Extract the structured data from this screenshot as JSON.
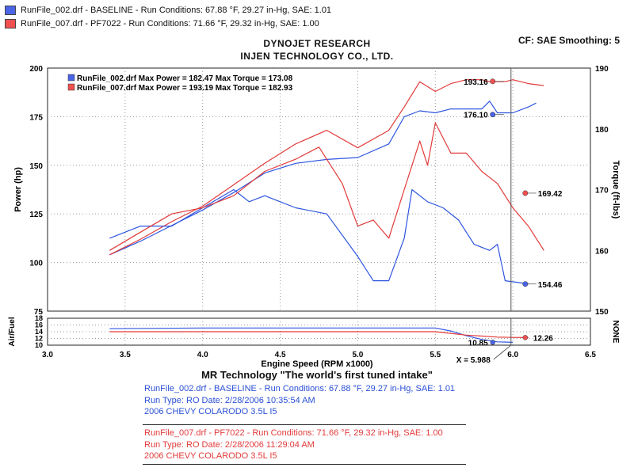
{
  "legend": [
    {
      "text": "RunFile_002.drf - BASELINE  -  Run Conditions: 67.88 °F, 29.27 in-Hg, SAE: 1.01",
      "color": "#4a64e6"
    },
    {
      "text": "RunFile_007.drf - PF7022  -  Run Conditions: 71.66 °F, 29.32 in-Hg, SAE: 1.00",
      "color": "#f05050"
    }
  ],
  "header": {
    "line1": "DYNOJET RESEARCH",
    "line2": "INJEN TECHNOLOGY CO., LTD.",
    "cf_smoothing": "CF: SAE  Smoothing: 5"
  },
  "chart_data": {
    "type": "line",
    "title": "",
    "xlabel": "Engine Speed (RPM x1000)",
    "ylabel_left": "Power (hp)",
    "ylabel_right": "Torque (ft-lbs)",
    "xlim": [
      3.0,
      6.5
    ],
    "xticks": [
      "3.0",
      "3.5",
      "4.0",
      "4.5",
      "5.0",
      "5.5",
      "6.0",
      "6.5"
    ],
    "ylim_power": [
      75,
      200
    ],
    "yticks_power": [
      "75",
      "100",
      "125",
      "150",
      "175",
      "200"
    ],
    "ylim_torque": [
      150,
      190
    ],
    "yticks_torque": [
      "150",
      "160",
      "170",
      "180",
      "190"
    ],
    "grid": true,
    "inplot_legend": [
      {
        "text": "RunFile_002.drf Max Power = 182.47     Max Torque = 173.08",
        "color": "#4a64e6"
      },
      {
        "text": "RunFile_007.drf Max Power = 193.19     Max Torque = 182.93",
        "color": "#f05050"
      }
    ],
    "cursor_x": 5.988,
    "cursor_label": "X = 5.988",
    "series": [
      {
        "name": "RunFile_002.drf",
        "measure": "Power (hp)",
        "color": "#2e55e0",
        "x": [
          3.4,
          3.6,
          3.8,
          4.0,
          4.2,
          4.4,
          4.6,
          4.8,
          5.0,
          5.2,
          5.3,
          5.4,
          5.5,
          5.6,
          5.7,
          5.8,
          5.85,
          5.9,
          5.95,
          6.0,
          6.1,
          6.15
        ],
        "y": [
          104,
          111,
          119,
          127,
          136,
          146,
          151,
          153,
          154,
          161,
          175,
          178,
          177,
          179,
          179,
          179,
          183,
          177,
          177,
          177,
          180,
          182
        ]
      },
      {
        "name": "RunFile_007.drf",
        "measure": "Power (hp)",
        "color": "#e23a3a",
        "x": [
          3.4,
          3.6,
          3.8,
          4.0,
          4.2,
          4.4,
          4.6,
          4.8,
          5.0,
          5.2,
          5.3,
          5.4,
          5.5,
          5.6,
          5.7,
          5.8,
          5.85,
          5.9,
          5.95,
          6.0,
          6.1,
          6.2
        ],
        "y": [
          104,
          112,
          121,
          129,
          140,
          151,
          161,
          168,
          159,
          168,
          180,
          193,
          188,
          192,
          194,
          194,
          193,
          193,
          193,
          194,
          192,
          191
        ]
      },
      {
        "name": "RunFile_002.drf",
        "measure": "Torque (ft-lbs)",
        "color": "#2e55e0",
        "x": [
          3.4,
          3.6,
          3.8,
          4.0,
          4.2,
          4.3,
          4.4,
          4.6,
          4.8,
          5.0,
          5.1,
          5.2,
          5.3,
          5.35,
          5.45,
          5.55,
          5.65,
          5.75,
          5.85,
          5.9,
          5.95,
          6.1
        ],
        "y": [
          162,
          164,
          164,
          167,
          170,
          168,
          169,
          167,
          166,
          159,
          155,
          155,
          162,
          170,
          168,
          167,
          165,
          161,
          160,
          161,
          155,
          154.5
        ]
      },
      {
        "name": "RunFile_007.drf",
        "measure": "Torque (ft-lbs)",
        "color": "#e23a3a",
        "x": [
          3.4,
          3.6,
          3.8,
          4.0,
          4.2,
          4.4,
          4.6,
          4.75,
          4.9,
          5.0,
          5.1,
          5.2,
          5.3,
          5.4,
          5.45,
          5.5,
          5.6,
          5.7,
          5.8,
          5.9,
          6.0,
          6.1,
          6.2
        ],
        "y": [
          160,
          163,
          166,
          167,
          169,
          173,
          175,
          177,
          171,
          164,
          165,
          162,
          170,
          178,
          174,
          181,
          176,
          176,
          173,
          171,
          167,
          164,
          160
        ]
      }
    ],
    "markers": [
      {
        "series": "RunFile_007.drf",
        "label": "193.16",
        "x": 5.87,
        "axis": "power",
        "value": 193.16,
        "color": "#f05050"
      },
      {
        "series": "RunFile_002.drf",
        "label": "176.10",
        "x": 5.87,
        "axis": "power",
        "value": 176.1,
        "color": "#4a64e6"
      },
      {
        "series": "RunFile_007.drf",
        "label": "169.42",
        "x": 6.08,
        "axis": "torque",
        "value": 169.42,
        "color": "#f05050"
      },
      {
        "series": "RunFile_002.drf",
        "label": "154.46",
        "x": 6.08,
        "axis": "torque",
        "value": 154.46,
        "color": "#4a64e6"
      }
    ],
    "afr": {
      "ylabel": "Air/Fuel",
      "right_label": "NONE",
      "ylim": [
        10,
        18
      ],
      "yticks": [
        "10",
        "12",
        "14",
        "16",
        "18"
      ],
      "series": [
        {
          "name": "RunFile_002.drf",
          "color": "#2e55e0",
          "x": [
            3.4,
            4.0,
            4.5,
            5.0,
            5.5,
            5.6,
            5.7,
            5.8,
            5.9,
            6.0
          ],
          "y": [
            14.9,
            15.1,
            15.1,
            15.1,
            15.1,
            14.2,
            12.8,
            11.7,
            11.0,
            10.85
          ]
        },
        {
          "name": "RunFile_007.drf",
          "color": "#e23a3a",
          "x": [
            3.4,
            4.0,
            4.5,
            5.0,
            5.5,
            5.6,
            5.7,
            5.8,
            5.9,
            6.0,
            6.1
          ],
          "y": [
            14.0,
            14.0,
            14.0,
            14.0,
            14.0,
            13.5,
            13.0,
            12.7,
            12.4,
            12.3,
            12.26
          ]
        }
      ],
      "markers": [
        {
          "label": "10.85",
          "x": 5.87,
          "value": 10.85,
          "color": "#4a64e6"
        },
        {
          "label": "12.26",
          "x": 6.08,
          "value": 12.26,
          "color": "#f05050"
        }
      ]
    }
  },
  "footer": {
    "tagline": "MR Technology \"The world's first tuned intake\"",
    "run1": {
      "line1": "RunFile_002.drf - BASELINE  -  Run Conditions: 67.88 °F, 29.27 in-Hg, SAE: 1.01",
      "line2": "Run Type: RO  Date: 2/28/2006 10:35:54 AM",
      "line3": "2006 CHEVY COLARODO 3.5L I5"
    },
    "run2": {
      "line1": "RunFile_007.drf - PF7022  -  Run Conditions: 71.66 °F, 29.32 in-Hg, SAE: 1.00",
      "line2": "Run Type: RO  Date: 2/28/2006 11:29:04 AM",
      "line3": "2006 CHEVY COLARODO 3.5L I5"
    }
  }
}
